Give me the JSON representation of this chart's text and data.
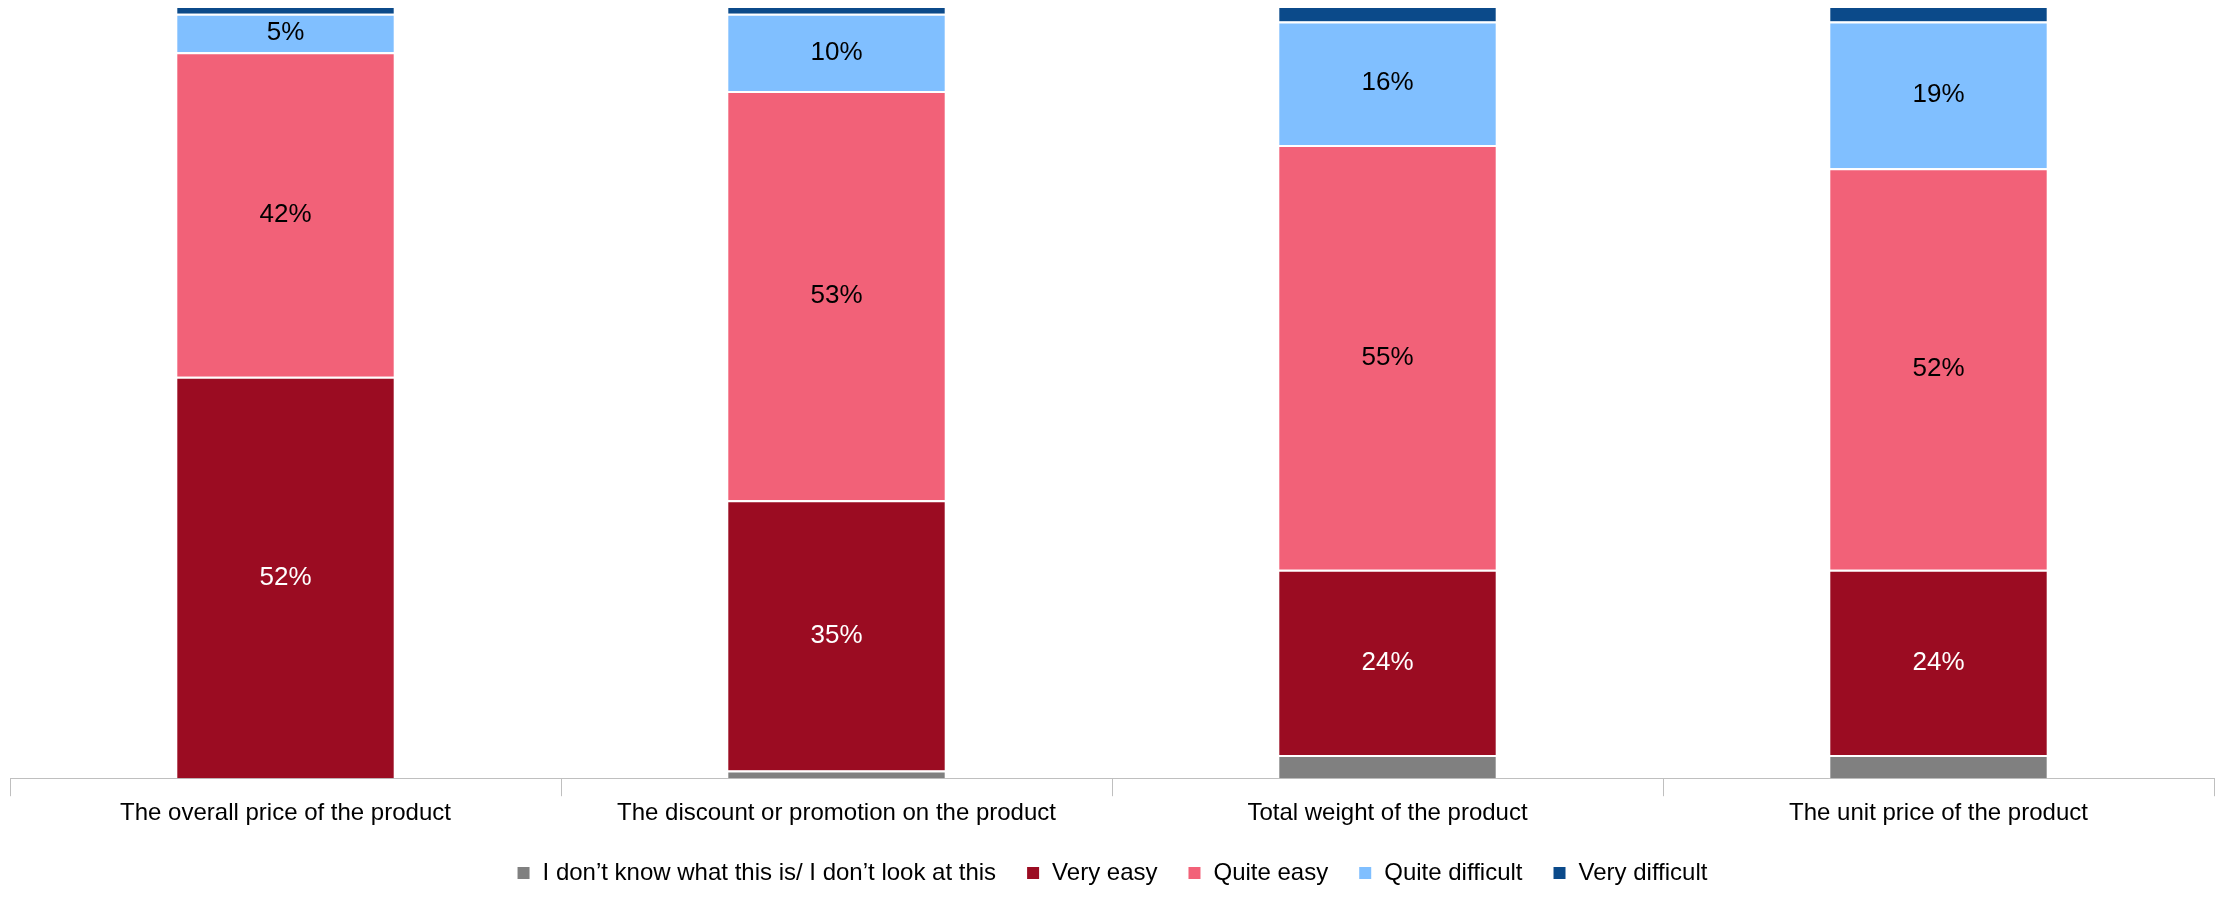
{
  "chart_data": {
    "type": "bar",
    "stacked": true,
    "categories": [
      "The overall price of the product",
      "The discount or promotion on the product",
      "Total weight of the product",
      "The unit price of the product"
    ],
    "series": [
      {
        "name": "I don’t know what this is/ I don’t look at this",
        "color": "#808080",
        "values": [
          0,
          1,
          3,
          3
        ],
        "value_labels": [
          null,
          null,
          null,
          null
        ]
      },
      {
        "name": "Very easy",
        "color": "#9b0c22",
        "values": [
          52,
          35,
          24,
          24
        ],
        "value_labels": [
          "52%",
          "35%",
          "24%",
          "24%"
        ]
      },
      {
        "name": "Quite easy",
        "color": "#f26178",
        "values": [
          42,
          53,
          55,
          52
        ],
        "value_labels": [
          "42%",
          "53%",
          "55%",
          "52%"
        ]
      },
      {
        "name": "Quite difficult",
        "color": "#80bfff",
        "values": [
          5,
          10,
          16,
          19
        ],
        "value_labels": [
          "5%",
          "10%",
          "16%",
          "19%"
        ]
      },
      {
        "name": "Very difficult",
        "color": "#0b4a8a",
        "values": [
          1,
          1,
          2,
          2
        ],
        "value_labels": [
          null,
          null,
          null,
          null
        ]
      }
    ],
    "ylim": [
      0,
      100
    ],
    "tick_labels": "x",
    "grid": false,
    "legend": "bottom"
  }
}
